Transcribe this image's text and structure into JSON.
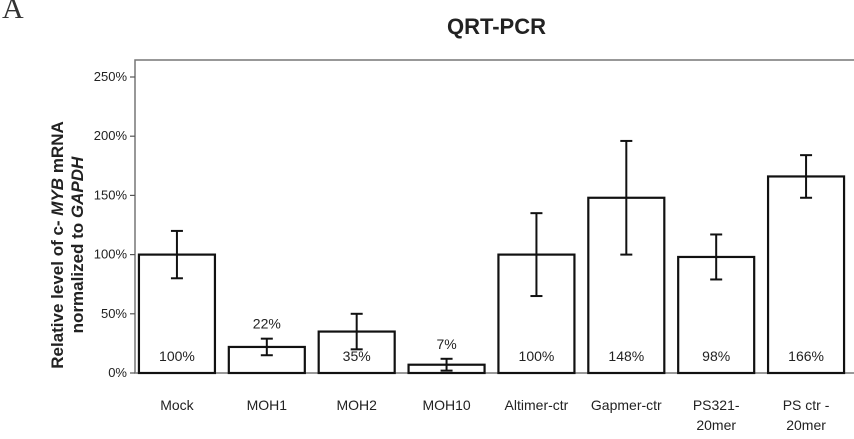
{
  "panel_label": "A",
  "chart_data": {
    "type": "bar",
    "title": "QRT-PCR",
    "ylabel_parts": [
      "Relative level of c- ",
      "MYB",
      " mRNA",
      "normalized to ",
      "GAPDH"
    ],
    "ylim": [
      0,
      250
    ],
    "yticks": [
      0,
      50,
      100,
      150,
      200,
      250
    ],
    "ytick_labels": [
      "0%",
      "50%",
      "100%",
      "150%",
      "200%",
      "250%"
    ],
    "grid": false,
    "categories": [
      [
        "Mock"
      ],
      [
        "MOH1"
      ],
      [
        "MOH2"
      ],
      [
        "MOH10"
      ],
      [
        "Altimer-ctr"
      ],
      [
        "Gapmer-ctr"
      ],
      [
        "PS321-",
        "20mer"
      ],
      [
        "PS ctr -",
        "20mer"
      ]
    ],
    "values": [
      100,
      22,
      35,
      7,
      100,
      148,
      98,
      166
    ],
    "errors": [
      20,
      7,
      15,
      5,
      35,
      48,
      19,
      18
    ],
    "bar_labels": [
      "100%",
      "22%",
      "35%",
      "7%",
      "100%",
      "148%",
      "98%",
      "166%"
    ],
    "label_outside": [
      false,
      true,
      false,
      true,
      false,
      false,
      false,
      false
    ]
  }
}
